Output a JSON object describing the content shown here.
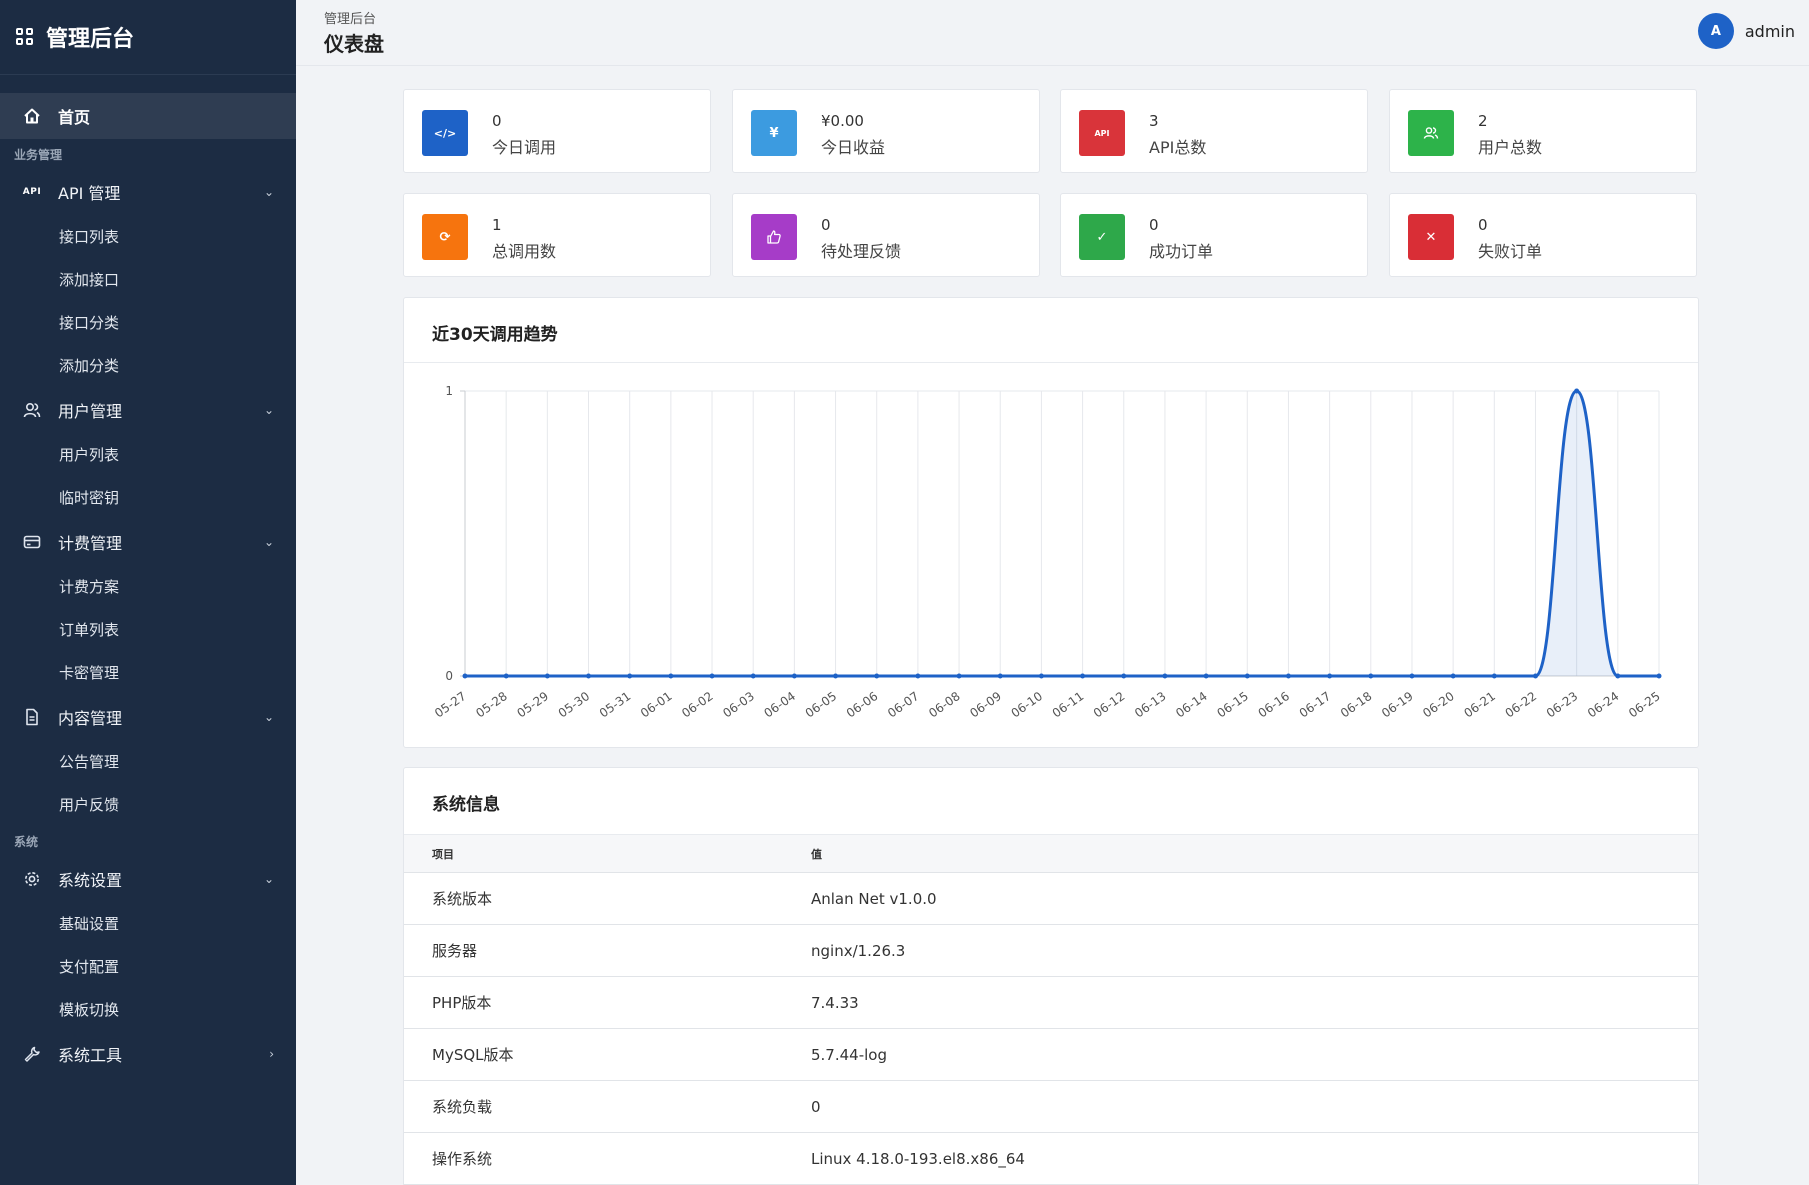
{
  "brand": {
    "title": "管理后台"
  },
  "sidebar": {
    "home": "首页",
    "section_business": "业务管理",
    "api_group": {
      "label": "API 管理",
      "badge": "API",
      "items": [
        "接口列表",
        "添加接口",
        "接口分类",
        "添加分类"
      ]
    },
    "user_group": {
      "label": "用户管理",
      "items": [
        "用户列表",
        "临时密钥"
      ]
    },
    "billing_group": {
      "label": "计费管理",
      "items": [
        "计费方案",
        "订单列表",
        "卡密管理"
      ]
    },
    "content_group": {
      "label": "内容管理",
      "items": [
        "公告管理",
        "用户反馈"
      ]
    },
    "section_system": "系统",
    "settings_group": {
      "label": "系统设置",
      "items": [
        "基础设置",
        "支付配置",
        "模板切换"
      ]
    },
    "tools_group": {
      "label": "系统工具"
    }
  },
  "header": {
    "breadcrumb": "管理后台",
    "title": "仪表盘",
    "avatar_letter": "A",
    "username": "admin"
  },
  "stats": [
    {
      "value": "0",
      "label": "今日调用",
      "color": "#1e62c7",
      "icon": "code-icon",
      "glyph": "</>"
    },
    {
      "value": "¥0.00",
      "label": "今日收益",
      "color": "#3c9be0",
      "icon": "yen-icon",
      "glyph": "¥"
    },
    {
      "value": "3",
      "label": "API总数",
      "color": "#d9343a",
      "icon": "api-icon",
      "glyph": "API"
    },
    {
      "value": "2",
      "label": "用户总数",
      "color": "#2db34a",
      "icon": "users-icon",
      "glyph": ""
    },
    {
      "value": "1",
      "label": "总调用数",
      "color": "#f6740e",
      "icon": "refresh-icon",
      "glyph": "⟳"
    },
    {
      "value": "0",
      "label": "待处理反馈",
      "color": "#a63cc8",
      "icon": "thumbs-up-icon",
      "glyph": ""
    },
    {
      "value": "0",
      "label": "成功订单",
      "color": "#2ea84a",
      "icon": "check-icon",
      "glyph": "✓"
    },
    {
      "value": "0",
      "label": "失败订单",
      "color": "#d92e36",
      "icon": "close-icon",
      "glyph": "✕"
    }
  ],
  "chart_panel": {
    "title": "近30天调用趋势"
  },
  "chart_data": {
    "type": "line",
    "title": "近30天调用趋势",
    "x": [
      "05-27",
      "05-28",
      "05-29",
      "05-30",
      "05-31",
      "06-01",
      "06-02",
      "06-03",
      "06-04",
      "06-05",
      "06-06",
      "06-07",
      "06-08",
      "06-09",
      "06-10",
      "06-11",
      "06-12",
      "06-13",
      "06-14",
      "06-15",
      "06-16",
      "06-17",
      "06-18",
      "06-19",
      "06-20",
      "06-21",
      "06-22",
      "06-23",
      "06-24",
      "06-25"
    ],
    "series": [
      {
        "values": [
          0,
          0,
          0,
          0,
          0,
          0,
          0,
          0,
          0,
          0,
          0,
          0,
          0,
          0,
          0,
          0,
          0,
          0,
          0,
          0,
          0,
          0,
          0,
          0,
          0,
          0,
          0,
          1,
          0,
          0
        ],
        "color": "#1e62c7"
      }
    ],
    "ylim": [
      0,
      1
    ],
    "yticks": [
      "0",
      "1"
    ],
    "grid": true,
    "smooth": true,
    "fill": true
  },
  "system_info": {
    "title": "系统信息",
    "headers": [
      "项目",
      "值"
    ],
    "rows": [
      [
        "系统版本",
        "Anlan Net v1.0.0"
      ],
      [
        "服务器",
        "nginx/1.26.3"
      ],
      [
        "PHP版本",
        "7.4.33"
      ],
      [
        "MySQL版本",
        "5.7.44-log"
      ],
      [
        "系统负载",
        "0"
      ],
      [
        "操作系统",
        "Linux 4.18.0-193.el8.x86_64"
      ]
    ]
  }
}
